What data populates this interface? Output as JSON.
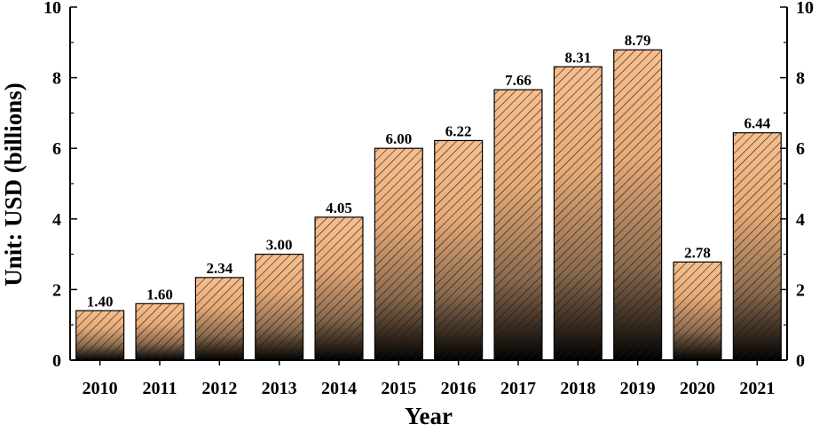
{
  "chart_data": {
    "type": "bar",
    "title": "",
    "xlabel": "Year",
    "ylabel": "Unit: USD (billions)",
    "categories": [
      "2010",
      "2011",
      "2012",
      "2013",
      "2014",
      "2015",
      "2016",
      "2017",
      "2018",
      "2019",
      "2020",
      "2021"
    ],
    "values": [
      1.4,
      1.6,
      2.34,
      3.0,
      4.05,
      6.0,
      6.22,
      7.66,
      8.31,
      8.79,
      2.78,
      6.44
    ],
    "value_labels": [
      "1.40",
      "1.60",
      "2.34",
      "3.00",
      "4.05",
      "6.00",
      "6.22",
      "7.66",
      "8.31",
      "8.79",
      "2.78",
      "6.44"
    ],
    "ylim": [
      0,
      10
    ],
    "yticks": [
      0,
      2,
      4,
      6,
      8,
      10
    ],
    "ytick_labels": [
      "0",
      "2",
      "4",
      "6",
      "8",
      "10"
    ],
    "right_axis_mirrored": true,
    "grid": false,
    "legend": "none",
    "bar_style": "hatched, gradient from peach to black",
    "colors": {
      "bar_top": "#f7bf8e",
      "bar_bottom": "#000000",
      "hatch": "#1a1a1a",
      "axis": "#000000"
    }
  }
}
